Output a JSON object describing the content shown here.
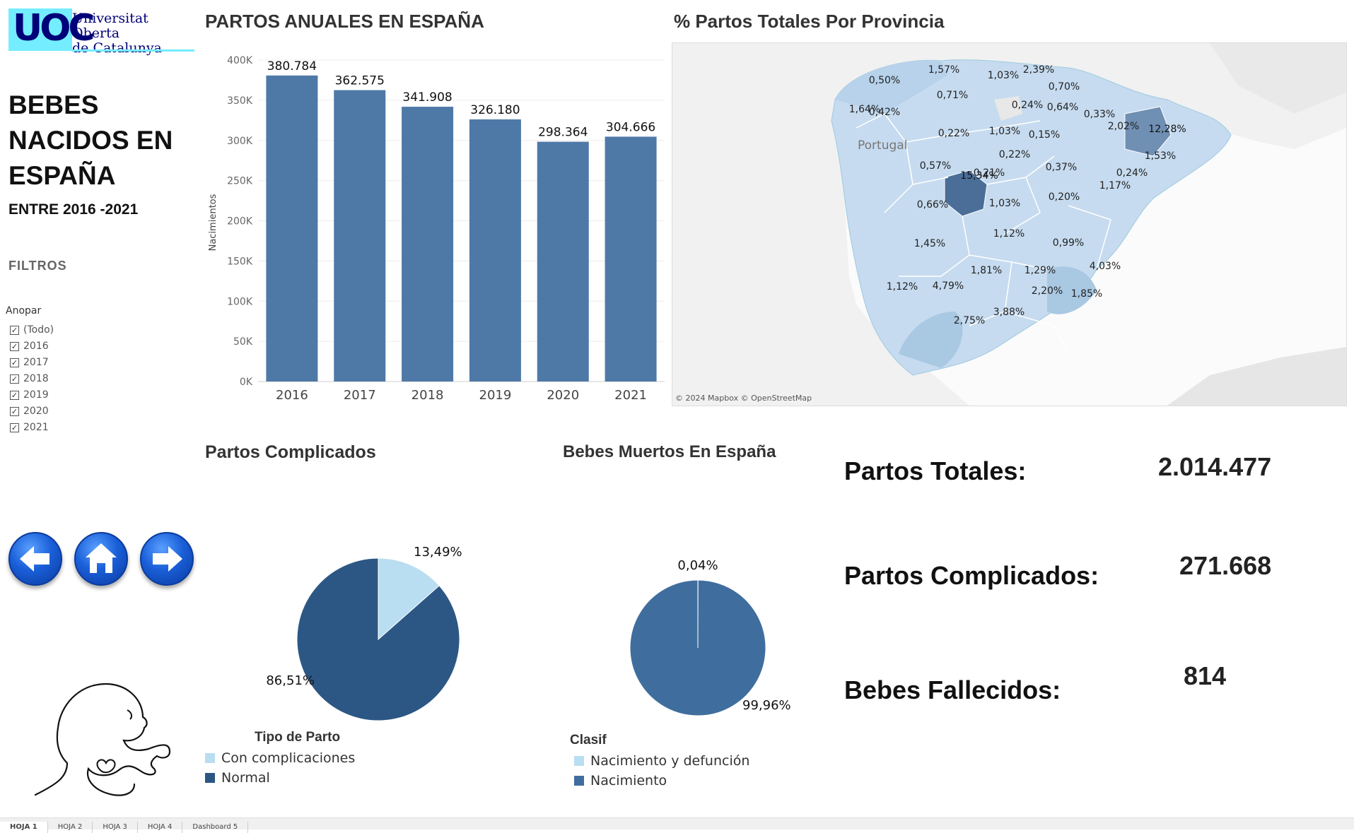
{
  "logo": {
    "mark": "UOC",
    "line1": "Universitat Oberta",
    "line2": "de Catalunya"
  },
  "sidebar": {
    "title": "BEBES NACIDOS EN ESPAÑA",
    "subtitle": "ENTRE 2016 -2021",
    "filters_label": "FILTROS",
    "filter_title": "Anopar",
    "filter_items": [
      {
        "label": "(Todo)",
        "checked": true
      },
      {
        "label": "2016",
        "checked": true
      },
      {
        "label": "2017",
        "checked": true
      },
      {
        "label": "2018",
        "checked": true
      },
      {
        "label": "2019",
        "checked": true
      },
      {
        "label": "2020",
        "checked": true
      },
      {
        "label": "2021",
        "checked": true
      }
    ],
    "nav_icons": [
      "arrow-left-icon",
      "home-icon",
      "arrow-right-icon"
    ]
  },
  "bar_chart": {
    "title": "PARTOS ANUALES EN ESPAÑA"
  },
  "map": {
    "title": "% Partos Totales Por Provincia",
    "country_label": "Portugal",
    "attribution": "© 2024 Mapbox © OpenStreetMap",
    "labels": [
      "1,57%",
      "2,39%",
      "1,03%",
      "0,50%",
      "0,70%",
      "0,71%",
      "1,64%",
      "0,24%",
      "0,64%",
      "0,42%",
      "0,33%",
      "12,28%",
      "2,02%",
      "0,22%",
      "1,03%",
      "0,15%",
      "0,22%",
      "1,53%",
      "0,57%",
      "0,21%",
      "15,34%",
      "0,37%",
      "0,24%",
      "1,17%",
      "1,03%",
      "0,20%",
      "0,66%",
      "1,12%",
      "0,99%",
      "1,45%",
      "1,81%",
      "1,29%",
      "4,03%",
      "1,12%",
      "4,79%",
      "2,20%",
      "1,85%",
      "3,88%",
      "2,75%"
    ]
  },
  "pie1": {
    "title": "Partos Complicados",
    "legend_title": "Tipo de Parto"
  },
  "pie2": {
    "title": "Bebes Muertos En España",
    "legend_title": "Clasif"
  },
  "kpis": [
    {
      "label": "Partos Totales:",
      "value": "2.014.477"
    },
    {
      "label": "Partos Complicados:",
      "value": "271.668"
    },
    {
      "label": "Bebes Fallecidos:",
      "value": "814"
    }
  ],
  "tabs": [
    "HOJA 1",
    "HOJA 2",
    "HOJA 3",
    "HOJA 4",
    "Dashboard 5"
  ],
  "colors": {
    "bar": "#4e79a7",
    "pie_dark": "#2c5784",
    "pie_light": "#b9ddf1",
    "pie2_main": "#3f6e9e",
    "map_light": "#c6dbef",
    "map_dark": "#4a6e98"
  },
  "chart_data": [
    {
      "type": "bar",
      "categories": [
        "2016",
        "2017",
        "2018",
        "2019",
        "2020",
        "2021"
      ],
      "values": [
        380784,
        362575,
        341908,
        326180,
        298364,
        304666
      ],
      "data_labels": [
        "380.784",
        "362.575",
        "341.908",
        "326.180",
        "298.364",
        "304.666"
      ],
      "ylabel": "Nacimientos",
      "ylim": [
        0,
        400000
      ],
      "yticks": [
        0,
        50000,
        100000,
        150000,
        200000,
        250000,
        300000,
        350000,
        400000
      ],
      "ytick_labels": [
        "0K",
        "50K",
        "100K",
        "150K",
        "200K",
        "250K",
        "300K",
        "350K",
        "400K"
      ],
      "grid": true
    },
    {
      "type": "pie",
      "categories": [
        "Con complicaciones",
        "Normal"
      ],
      "values": [
        13.49,
        86.51
      ],
      "data_labels": [
        "13,49%",
        "86,51%"
      ],
      "legend_position": "bottom"
    },
    {
      "type": "pie",
      "categories": [
        "Nacimiento y defunción",
        "Nacimiento"
      ],
      "values": [
        0.04,
        99.96
      ],
      "data_labels": [
        "0,04%",
        "99,96%"
      ],
      "legend_position": "bottom"
    }
  ]
}
